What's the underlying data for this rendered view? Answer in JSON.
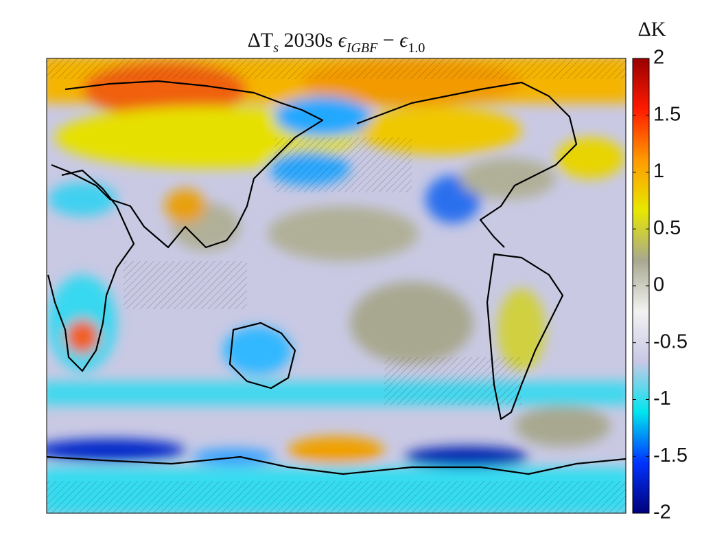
{
  "title_parts": [
    "ΔT",
    "s",
    " 2030s ",
    "ϵ",
    "IGBF",
    " − ",
    "ϵ",
    "1.0"
  ],
  "colorbar": {
    "label": "ΔK",
    "lim": [
      -2,
      2
    ],
    "ticks": [
      -2,
      -1.5,
      -1,
      -0.5,
      0,
      0.5,
      1,
      1.5,
      2
    ],
    "colors": [
      "#00007a",
      "#0033ff",
      "#00e5ee",
      "#c8c8e6",
      "#f2f2f2",
      "#a8a890",
      "#e8e800",
      "#ff9900",
      "#ff1a00",
      "#990000"
    ]
  }
}
